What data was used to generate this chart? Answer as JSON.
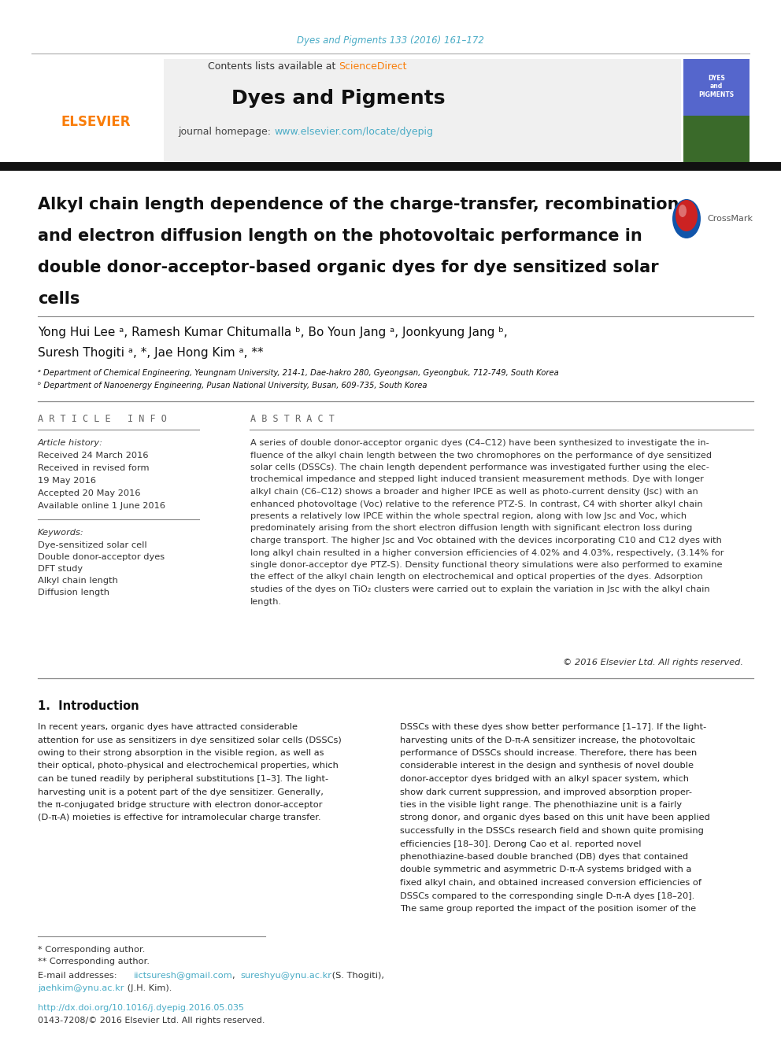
{
  "journal_ref": "Dyes and Pigments 133 (2016) 161–172",
  "journal_ref_color": "#4BACC6",
  "header_bg": "#f0f0f0",
  "header_text": "Contents lists available at ",
  "sciencedirect_text": "ScienceDirect",
  "sciencedirect_color": "#F97D09",
  "journal_name": "Dyes and Pigments",
  "journal_homepage_label": "journal homepage: ",
  "journal_url": "www.elsevier.com/locate/dyepig",
  "journal_url_color": "#4BACC6",
  "elsevier_color": "#F97D09",
  "top_bar_color": "#2B2B2B",
  "article_title": "Alkyl chain length dependence of the charge-transfer, recombination\nand electron diffusion length on the photovoltaic performance in\ndouble donor-acceptor-based organic dyes for dye sensitized solar\ncells",
  "authors_line1": "Yong Hui Lee ᵃ, Ramesh Kumar Chitumalla ᵇ, Bo Youn Jang ᵃ, Joonkyung Jang ᵇ,",
  "authors_line2": "Suresh Thogiti ᵃ, *, Jae Hong Kim ᵃ, **",
  "affiliation_a": "ᵃ Department of Chemical Engineering, Yeungnam University, 214-1, Dae-hakro 280, Gyeongsan, Gyeongbuk, 712-749, South Korea",
  "affiliation_b": "ᵇ Department of Nanoenergy Engineering, Pusan National University, Busan, 609-735, South Korea",
  "article_info_header": "A R T I C L E   I N F O",
  "abstract_header": "A B S T R A C T",
  "article_history_label": "Article history:",
  "received": "Received 24 March 2016",
  "received_revised1": "Received in revised form",
  "received_revised2": "19 May 2016",
  "accepted": "Accepted 20 May 2016",
  "available": "Available online 1 June 2016",
  "keywords_label": "Keywords:",
  "keywords": [
    "Dye-sensitized solar cell",
    "Double donor-acceptor dyes",
    "DFT study",
    "Alkyl chain length",
    "Diffusion length"
  ],
  "abstract_text": [
    "A series of double donor-acceptor organic dyes (C4–C12) have been synthesized to investigate the in-",
    "fluence of the alkyl chain length between the two chromophores on the performance of dye sensitized",
    "solar cells (DSSCs). The chain length dependent performance was investigated further using the elec-",
    "trochemical impedance and stepped light induced transient measurement methods. Dye with longer",
    "alkyl chain (C6–C12) shows a broader and higher IPCE as well as photo-current density (Jsc) with an",
    "enhanced photovoltage (Voc) relative to the reference PTZ-S. In contrast, C4 with shorter alkyl chain",
    "presents a relatively low IPCE within the whole spectral region, along with low Jsc and Voc, which",
    "predominately arising from the short electron diffusion length with significant electron loss during",
    "charge transport. The higher Jsc and Voc obtained with the devices incorporating C10 and C12 dyes with",
    "long alkyl chain resulted in a higher conversion efficiencies of 4.02% and 4.03%, respectively, (3.14% for",
    "single donor-acceptor dye PTZ-S). Density functional theory simulations were also performed to examine",
    "the effect of the alkyl chain length on electrochemical and optical properties of the dyes. Adsorption",
    "studies of the dyes on TiO₂ clusters were carried out to explain the variation in Jsc with the alkyl chain",
    "length."
  ],
  "copyright": "© 2016 Elsevier Ltd. All rights reserved.",
  "intro_header": "1.  Introduction",
  "intro_left": [
    "In recent years, organic dyes have attracted considerable",
    "attention for use as sensitizers in dye sensitized solar cells (DSSCs)",
    "owing to their strong absorption in the visible region, as well as",
    "their optical, photo-physical and electrochemical properties, which",
    "can be tuned readily by peripheral substitutions [1–3]. The light-",
    "harvesting unit is a potent part of the dye sensitizer. Generally,",
    "the π-conjugated bridge structure with electron donor-acceptor",
    "(D-π-A) moieties is effective for intramolecular charge transfer."
  ],
  "intro_right": [
    "DSSCs with these dyes show better performance [1–17]. If the light-",
    "harvesting units of the D-π-A sensitizer increase, the photovoltaic",
    "performance of DSSCs should increase. Therefore, there has been",
    "considerable interest in the design and synthesis of novel double",
    "donor-acceptor dyes bridged with an alkyl spacer system, which",
    "show dark current suppression, and improved absorption proper-",
    "ties in the visible light range. The phenothiazine unit is a fairly",
    "strong donor, and organic dyes based on this unit have been applied",
    "successfully in the DSSCs research field and shown quite promising",
    "efficiencies [18–30]. Derong Cao et al. reported novel",
    "phenothiazine-based double branched (DB) dyes that contained",
    "double symmetric and asymmetric D-π-A systems bridged with a",
    "fixed alkyl chain, and obtained increased conversion efficiencies of",
    "DSSCs compared to the corresponding single D-π-A dyes [18–20].",
    "The same group reported the impact of the position isomer of the"
  ],
  "footnote_star": "* Corresponding author.",
  "footnote_dstar": "** Corresponding author.",
  "email_label": "E-mail addresses: ",
  "email1": "iictsuresh@gmail.com",
  "email_sep": ", ",
  "email2": "sureshyu@ynu.ac.kr",
  "email_suffix1": " (S. Thogiti),",
  "email3": "jaehkim@ynu.ac.kr",
  "email_suffix2": " (J.H. Kim).",
  "email_color": "#4BACC6",
  "doi_text": "http://dx.doi.org/10.1016/j.dyepig.2016.05.035",
  "issn_text": "0143-7208/© 2016 Elsevier Ltd. All rights reserved.",
  "bg_color": "#ffffff",
  "text_color": "#000000",
  "divider_color": "#cccccc",
  "thick_bar_color": "#1a1a1a"
}
